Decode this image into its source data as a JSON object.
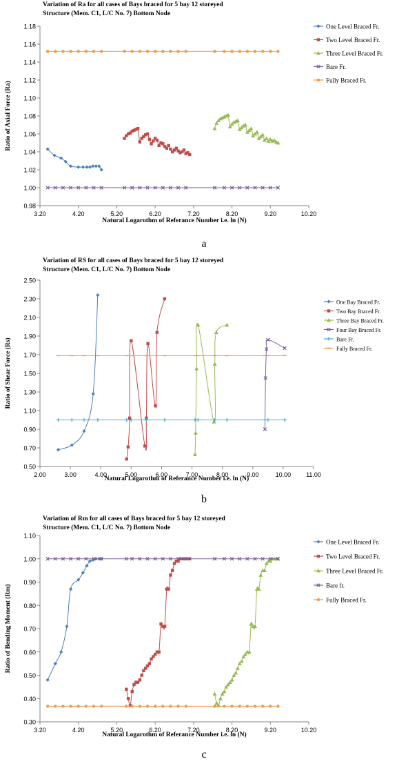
{
  "chart_data": [
    {
      "panel_label": "a",
      "type": "line",
      "title_lines": [
        "Variation of Ra for all cases of Bays braced for 5 bay  12 storeyed",
        "Structure (Mem. C1, L/C No. 7) Bottom Node"
      ],
      "xlabel": "Natural Logarothm of Referance Number i.e. ln (N)",
      "ylabel": "Ratio of  Axial Force (Ra)",
      "xlim": [
        3.2,
        10.2
      ],
      "ylim": [
        0.98,
        1.18
      ],
      "x_ticks": [
        "3.20",
        "4.20",
        "5.20",
        "6.20",
        "7.20",
        "8.20",
        "9.20",
        "10.20"
      ],
      "y_ticks": [
        "0.98",
        "1.00",
        "1.02",
        "1.04",
        "1.06",
        "1.08",
        "1.10",
        "1.12",
        "1.14",
        "1.16",
        "1.18"
      ],
      "grid": false,
      "legend_position": "right",
      "series": [
        {
          "name": "One Level Braced Fr.",
          "color": "#4a7ebb",
          "marker": "diamond",
          "x": [
            3.4,
            3.58,
            3.75,
            3.87,
            4.0,
            4.2,
            4.32,
            4.42,
            4.5,
            4.58,
            4.66,
            4.74,
            4.8
          ],
          "y": [
            1.043,
            1.036,
            1.033,
            1.029,
            1.024,
            1.023,
            1.023,
            1.023,
            1.023,
            1.024,
            1.024,
            1.024,
            1.02
          ]
        },
        {
          "name": "Two Level Braced Fr.",
          "color": "#be4b48",
          "marker": "square",
          "x": [
            5.4,
            5.45,
            5.5,
            5.55,
            5.6,
            5.65,
            5.7,
            5.75,
            5.8,
            5.85,
            5.9,
            5.95,
            6.0,
            6.05,
            6.1,
            6.15,
            6.2,
            6.25,
            6.3,
            6.35,
            6.4,
            6.45,
            6.5,
            6.55,
            6.6,
            6.65,
            6.7,
            6.75,
            6.8,
            6.85,
            6.9,
            6.95,
            7.0,
            7.05,
            7.1
          ],
          "y": [
            1.055,
            1.058,
            1.06,
            1.061,
            1.063,
            1.064,
            1.065,
            1.066,
            1.051,
            1.055,
            1.057,
            1.059,
            1.06,
            1.054,
            1.049,
            1.052,
            1.055,
            1.053,
            1.047,
            1.05,
            1.049,
            1.046,
            1.044,
            1.047,
            1.043,
            1.04,
            1.042,
            1.044,
            1.041,
            1.039,
            1.04,
            1.042,
            1.038,
            1.039,
            1.037
          ]
        },
        {
          "name": "Three Level Braced Fr.",
          "color": "#98b954",
          "marker": "triangle",
          "x": [
            7.75,
            7.8,
            7.85,
            7.9,
            7.95,
            8.0,
            8.05,
            8.1,
            8.15,
            8.2,
            8.25,
            8.3,
            8.35,
            8.4,
            8.45,
            8.5,
            8.55,
            8.6,
            8.65,
            8.7,
            8.75,
            8.8,
            8.85,
            8.9,
            8.95,
            9.0,
            9.05,
            9.1,
            9.15,
            9.2,
            9.25,
            9.3,
            9.35,
            9.4
          ],
          "y": [
            1.066,
            1.072,
            1.075,
            1.077,
            1.078,
            1.079,
            1.08,
            1.081,
            1.068,
            1.071,
            1.073,
            1.074,
            1.075,
            1.065,
            1.067,
            1.069,
            1.07,
            1.062,
            1.064,
            1.066,
            1.058,
            1.06,
            1.062,
            1.055,
            1.057,
            1.059,
            1.053,
            1.055,
            1.052,
            1.054,
            1.052,
            1.053,
            1.051,
            1.05
          ]
        },
        {
          "name": "Bare Fr.",
          "color": "#7d60a0",
          "marker": "x",
          "x": [
            3.4,
            3.6,
            3.8,
            4.0,
            4.2,
            4.4,
            4.6,
            4.8,
            5.4,
            5.6,
            5.8,
            6.0,
            6.2,
            6.4,
            6.6,
            6.8,
            7.0,
            7.75,
            8.0,
            8.2,
            8.4,
            8.6,
            8.8,
            9.0,
            9.2,
            9.4
          ],
          "y": [
            1.0,
            1.0,
            1.0,
            1.0,
            1.0,
            1.0,
            1.0,
            1.0,
            1.0,
            1.0,
            1.0,
            1.0,
            1.0,
            1.0,
            1.0,
            1.0,
            1.0,
            1.0,
            1.0,
            1.0,
            1.0,
            1.0,
            1.0,
            1.0,
            1.0,
            1.0
          ]
        },
        {
          "name": "Fully Braced Fr.",
          "color": "#f79646",
          "marker": "circle",
          "x": [
            3.4,
            3.6,
            3.8,
            4.0,
            4.2,
            4.4,
            4.6,
            4.8,
            5.4,
            5.6,
            5.8,
            6.0,
            6.2,
            6.4,
            6.6,
            6.8,
            7.0,
            7.75,
            8.0,
            8.2,
            8.4,
            8.6,
            8.8,
            9.0,
            9.2,
            9.4
          ],
          "y": [
            1.152,
            1.152,
            1.152,
            1.152,
            1.152,
            1.152,
            1.152,
            1.152,
            1.152,
            1.152,
            1.152,
            1.152,
            1.152,
            1.152,
            1.152,
            1.152,
            1.152,
            1.152,
            1.152,
            1.152,
            1.152,
            1.152,
            1.152,
            1.152,
            1.152,
            1.152
          ]
        }
      ]
    },
    {
      "panel_label": "b",
      "type": "line",
      "title_lines": [
        "Variation of RS for all cases of Bays braced for 5 bay  12 storeyed",
        "Structure (Mem. C1, L/C No. 7) Bottom Node"
      ],
      "xlabel": "Natural Logarothm of Referance Number i.e. ln (N)",
      "ylabel": "Ratio of  Shear Force (Rs)",
      "xlim": [
        2.0,
        11.0
      ],
      "ylim": [
        0.5,
        2.5
      ],
      "x_ticks": [
        "2.00",
        "3.00",
        "4.00",
        "5.00",
        "6.00",
        "7.00",
        "8.00",
        "9.00",
        "10.00",
        "11.00"
      ],
      "y_ticks": [
        "0.50",
        "0.70",
        "0.90",
        "1.10",
        "1.30",
        "1.50",
        "1.70",
        "1.90",
        "2.10",
        "2.30",
        "2.50"
      ],
      "grid": false,
      "legend_position": "right",
      "series": [
        {
          "name": "One Bay Braced Fr.",
          "color": "#4a7ebb",
          "marker": "diamond",
          "x": [
            2.6,
            3.05,
            3.45,
            3.75,
            3.9
          ],
          "y": [
            0.68,
            0.73,
            0.88,
            1.28,
            2.34
          ]
        },
        {
          "name": "Two Bay Braced Fr.",
          "color": "#be4b48",
          "marker": "square",
          "x": [
            4.85,
            4.9,
            4.95,
            5.0,
            5.45,
            5.5,
            5.55,
            5.8,
            5.85,
            6.1
          ],
          "y": [
            0.58,
            0.71,
            1.02,
            1.85,
            0.72,
            1.02,
            1.82,
            1.15,
            1.94,
            2.3
          ]
        },
        {
          "name": "Three Bay Braced Fr.",
          "color": "#98b954",
          "marker": "triangle",
          "x": [
            7.1,
            7.12,
            7.15,
            7.2,
            7.72,
            7.75,
            7.8,
            8.15
          ],
          "y": [
            0.63,
            0.86,
            1.55,
            2.02,
            0.98,
            1.6,
            1.94,
            2.02
          ]
        },
        {
          "name": "Four Bay Braced Fr.",
          "color": "#7d60a0",
          "marker": "x",
          "x": [
            9.4,
            9.42,
            9.45,
            9.5,
            10.05
          ],
          "y": [
            0.9,
            1.45,
            1.76,
            1.86,
            1.77
          ]
        },
        {
          "name": "Bare Fr.",
          "color": "#4aacc6",
          "marker": "plus",
          "x": [
            2.6,
            3.05,
            3.45,
            3.9,
            4.85,
            5.0,
            5.5,
            6.1,
            7.1,
            7.2,
            7.75,
            8.15,
            9.4,
            9.5,
            10.05
          ],
          "y": [
            1.0,
            1.0,
            1.0,
            1.0,
            1.0,
            1.0,
            1.0,
            1.0,
            1.0,
            1.0,
            1.0,
            1.0,
            1.0,
            1.0,
            1.0
          ]
        },
        {
          "name": "Fully Braced Fr.",
          "color": "#f79646",
          "marker": "dash",
          "x": [
            2.6,
            3.05,
            3.45,
            3.9,
            4.85,
            5.0,
            5.5,
            6.1,
            7.1,
            7.2,
            7.75,
            8.15,
            9.4,
            9.5,
            10.05
          ],
          "y": [
            1.69,
            1.69,
            1.69,
            1.69,
            1.69,
            1.69,
            1.69,
            1.69,
            1.69,
            1.69,
            1.69,
            1.69,
            1.69,
            1.69,
            1.69
          ]
        }
      ]
    },
    {
      "panel_label": "c",
      "type": "line",
      "title_lines": [
        "Variation of Rm for all cases of Bays braced for 5 bay  12 storeyed",
        "Structure (Mem. C1, L/C No. 7) Bottom Node"
      ],
      "xlabel": "Natural Logarothm of Referance Number i.e. ln  (N)",
      "ylabel": "Ratio of Bending Moment (Rm)",
      "xlim": [
        3.2,
        10.2
      ],
      "ylim": [
        0.3,
        1.1
      ],
      "x_ticks": [
        "3.20",
        "4.20",
        "5.20",
        "6.20",
        "7.20",
        "8.20",
        "9.20",
        "10.20"
      ],
      "y_ticks": [
        "0.30",
        "0.40",
        "0.50",
        "0.60",
        "0.70",
        "0.80",
        "0.90",
        "1.00",
        "1.10"
      ],
      "grid": false,
      "legend_position": "right",
      "series": [
        {
          "name": "One Level Braced Fr.",
          "color": "#4a7ebb",
          "marker": "diamond",
          "x": [
            3.4,
            3.6,
            3.75,
            3.9,
            4.0,
            4.2,
            4.32,
            4.42,
            4.5,
            4.58,
            4.66,
            4.74,
            4.8
          ],
          "y": [
            0.48,
            0.55,
            0.6,
            0.71,
            0.87,
            0.91,
            0.94,
            0.97,
            0.99,
            0.995,
            1.0,
            1.0,
            1.0
          ]
        },
        {
          "name": "Two Level Braced Fr.",
          "color": "#be4b48",
          "marker": "square",
          "x": [
            5.45,
            5.5,
            5.55,
            5.6,
            5.65,
            5.7,
            5.75,
            5.8,
            5.85,
            5.9,
            5.95,
            6.0,
            6.05,
            6.1,
            6.15,
            6.2,
            6.25,
            6.3,
            6.35,
            6.4,
            6.45,
            6.5,
            6.55,
            6.6,
            6.65,
            6.7,
            6.75,
            6.8,
            6.85,
            6.9,
            6.95,
            7.0,
            7.05,
            7.1
          ],
          "y": [
            0.44,
            0.4,
            0.37,
            0.43,
            0.46,
            0.47,
            0.47,
            0.48,
            0.5,
            0.52,
            0.53,
            0.54,
            0.55,
            0.57,
            0.58,
            0.59,
            0.6,
            0.6,
            0.72,
            0.71,
            0.71,
            0.87,
            0.87,
            0.93,
            0.95,
            0.98,
            0.99,
            0.99,
            1.0,
            1.0,
            1.0,
            1.0,
            1.0,
            1.0
          ]
        },
        {
          "name": "Three Level Braced Fr.",
          "color": "#98b954",
          "marker": "triangle",
          "x": [
            7.75,
            7.8,
            7.85,
            7.9,
            7.95,
            8.0,
            8.05,
            8.1,
            8.15,
            8.2,
            8.25,
            8.3,
            8.35,
            8.4,
            8.45,
            8.5,
            8.55,
            8.6,
            8.65,
            8.7,
            8.75,
            8.8,
            8.85,
            8.9,
            8.95,
            9.0,
            9.05,
            9.1,
            9.15,
            9.2,
            9.25,
            9.3,
            9.35,
            9.4
          ],
          "y": [
            0.42,
            0.38,
            0.37,
            0.4,
            0.42,
            0.43,
            0.45,
            0.46,
            0.47,
            0.48,
            0.5,
            0.51,
            0.53,
            0.55,
            0.56,
            0.58,
            0.59,
            0.6,
            0.6,
            0.72,
            0.71,
            0.71,
            0.87,
            0.87,
            0.93,
            0.95,
            0.95,
            0.98,
            0.99,
            0.99,
            1.0,
            1.0,
            1.0,
            1.0
          ]
        },
        {
          "name": "Bare fr.",
          "color": "#7d60a0",
          "marker": "x",
          "x": [
            3.4,
            3.6,
            3.8,
            4.0,
            4.2,
            4.4,
            4.6,
            4.8,
            5.45,
            5.6,
            5.8,
            6.0,
            6.2,
            6.4,
            6.6,
            6.8,
            7.0,
            7.75,
            8.0,
            8.2,
            8.4,
            8.6,
            8.8,
            9.0,
            9.2,
            9.4
          ],
          "y": [
            1.0,
            1.0,
            1.0,
            1.0,
            1.0,
            1.0,
            1.0,
            1.0,
            1.0,
            1.0,
            1.0,
            1.0,
            1.0,
            1.0,
            1.0,
            1.0,
            1.0,
            1.0,
            1.0,
            1.0,
            1.0,
            1.0,
            1.0,
            1.0,
            1.0,
            1.0
          ]
        },
        {
          "name": "Fully Braced Fr.",
          "color": "#f79646",
          "marker": "circle",
          "x": [
            3.4,
            3.6,
            3.8,
            4.0,
            4.2,
            4.4,
            4.6,
            4.8,
            5.45,
            5.6,
            5.8,
            6.0,
            6.2,
            6.4,
            6.6,
            6.8,
            7.0,
            7.75,
            8.0,
            8.2,
            8.4,
            8.6,
            8.8,
            9.0,
            9.2,
            9.4
          ],
          "y": [
            0.367,
            0.367,
            0.367,
            0.367,
            0.367,
            0.367,
            0.367,
            0.367,
            0.367,
            0.367,
            0.367,
            0.367,
            0.367,
            0.367,
            0.367,
            0.367,
            0.367,
            0.367,
            0.367,
            0.367,
            0.367,
            0.367,
            0.367,
            0.367,
            0.367,
            0.367
          ]
        }
      ]
    }
  ]
}
